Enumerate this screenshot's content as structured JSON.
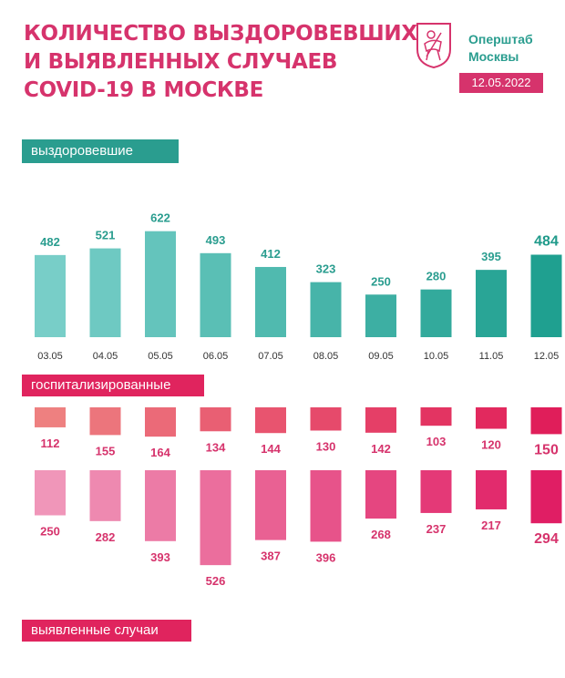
{
  "header": {
    "title_lines": [
      "КОЛИЧЕСТВО ВЫЗДОРОВЕВШИХ",
      "И ВЫЯВЛЕННЫХ СЛУЧАЕВ",
      "COVID-19 В МОСКВЕ"
    ],
    "brand_lines": [
      "Оперштаб",
      "Москвы"
    ],
    "date": "12.05.2022"
  },
  "labels": {
    "recovered": "выздоровевшие",
    "hospitalized": "госпитализированные",
    "cases": "выявленные случаи"
  },
  "colors": {
    "teal": "#2a9d8f",
    "pink": "#e0245e",
    "title": "#d6336c"
  },
  "icons": {
    "logo": "moscow-coat-of-arms-icon"
  },
  "chart_data": [
    {
      "type": "bar",
      "title": "выздоровевшие",
      "categories": [
        "03.05",
        "04.05",
        "05.05",
        "06.05",
        "07.05",
        "08.05",
        "09.05",
        "10.05",
        "11.05",
        "12.05"
      ],
      "values": [
        482,
        521,
        622,
        493,
        412,
        323,
        250,
        280,
        395,
        484
      ]
    },
    {
      "type": "bar",
      "title": "госпитализированные",
      "categories": [
        "03.05",
        "04.05",
        "05.05",
        "06.05",
        "07.05",
        "08.05",
        "09.05",
        "10.05",
        "11.05",
        "12.05"
      ],
      "values": [
        112,
        155,
        164,
        134,
        144,
        130,
        142,
        103,
        120,
        150
      ]
    },
    {
      "type": "bar",
      "title": "выявленные случаи",
      "categories": [
        "03.05",
        "04.05",
        "05.05",
        "06.05",
        "07.05",
        "08.05",
        "09.05",
        "10.05",
        "11.05",
        "12.05"
      ],
      "values": [
        250,
        282,
        393,
        526,
        387,
        396,
        268,
        237,
        217,
        294
      ]
    }
  ]
}
